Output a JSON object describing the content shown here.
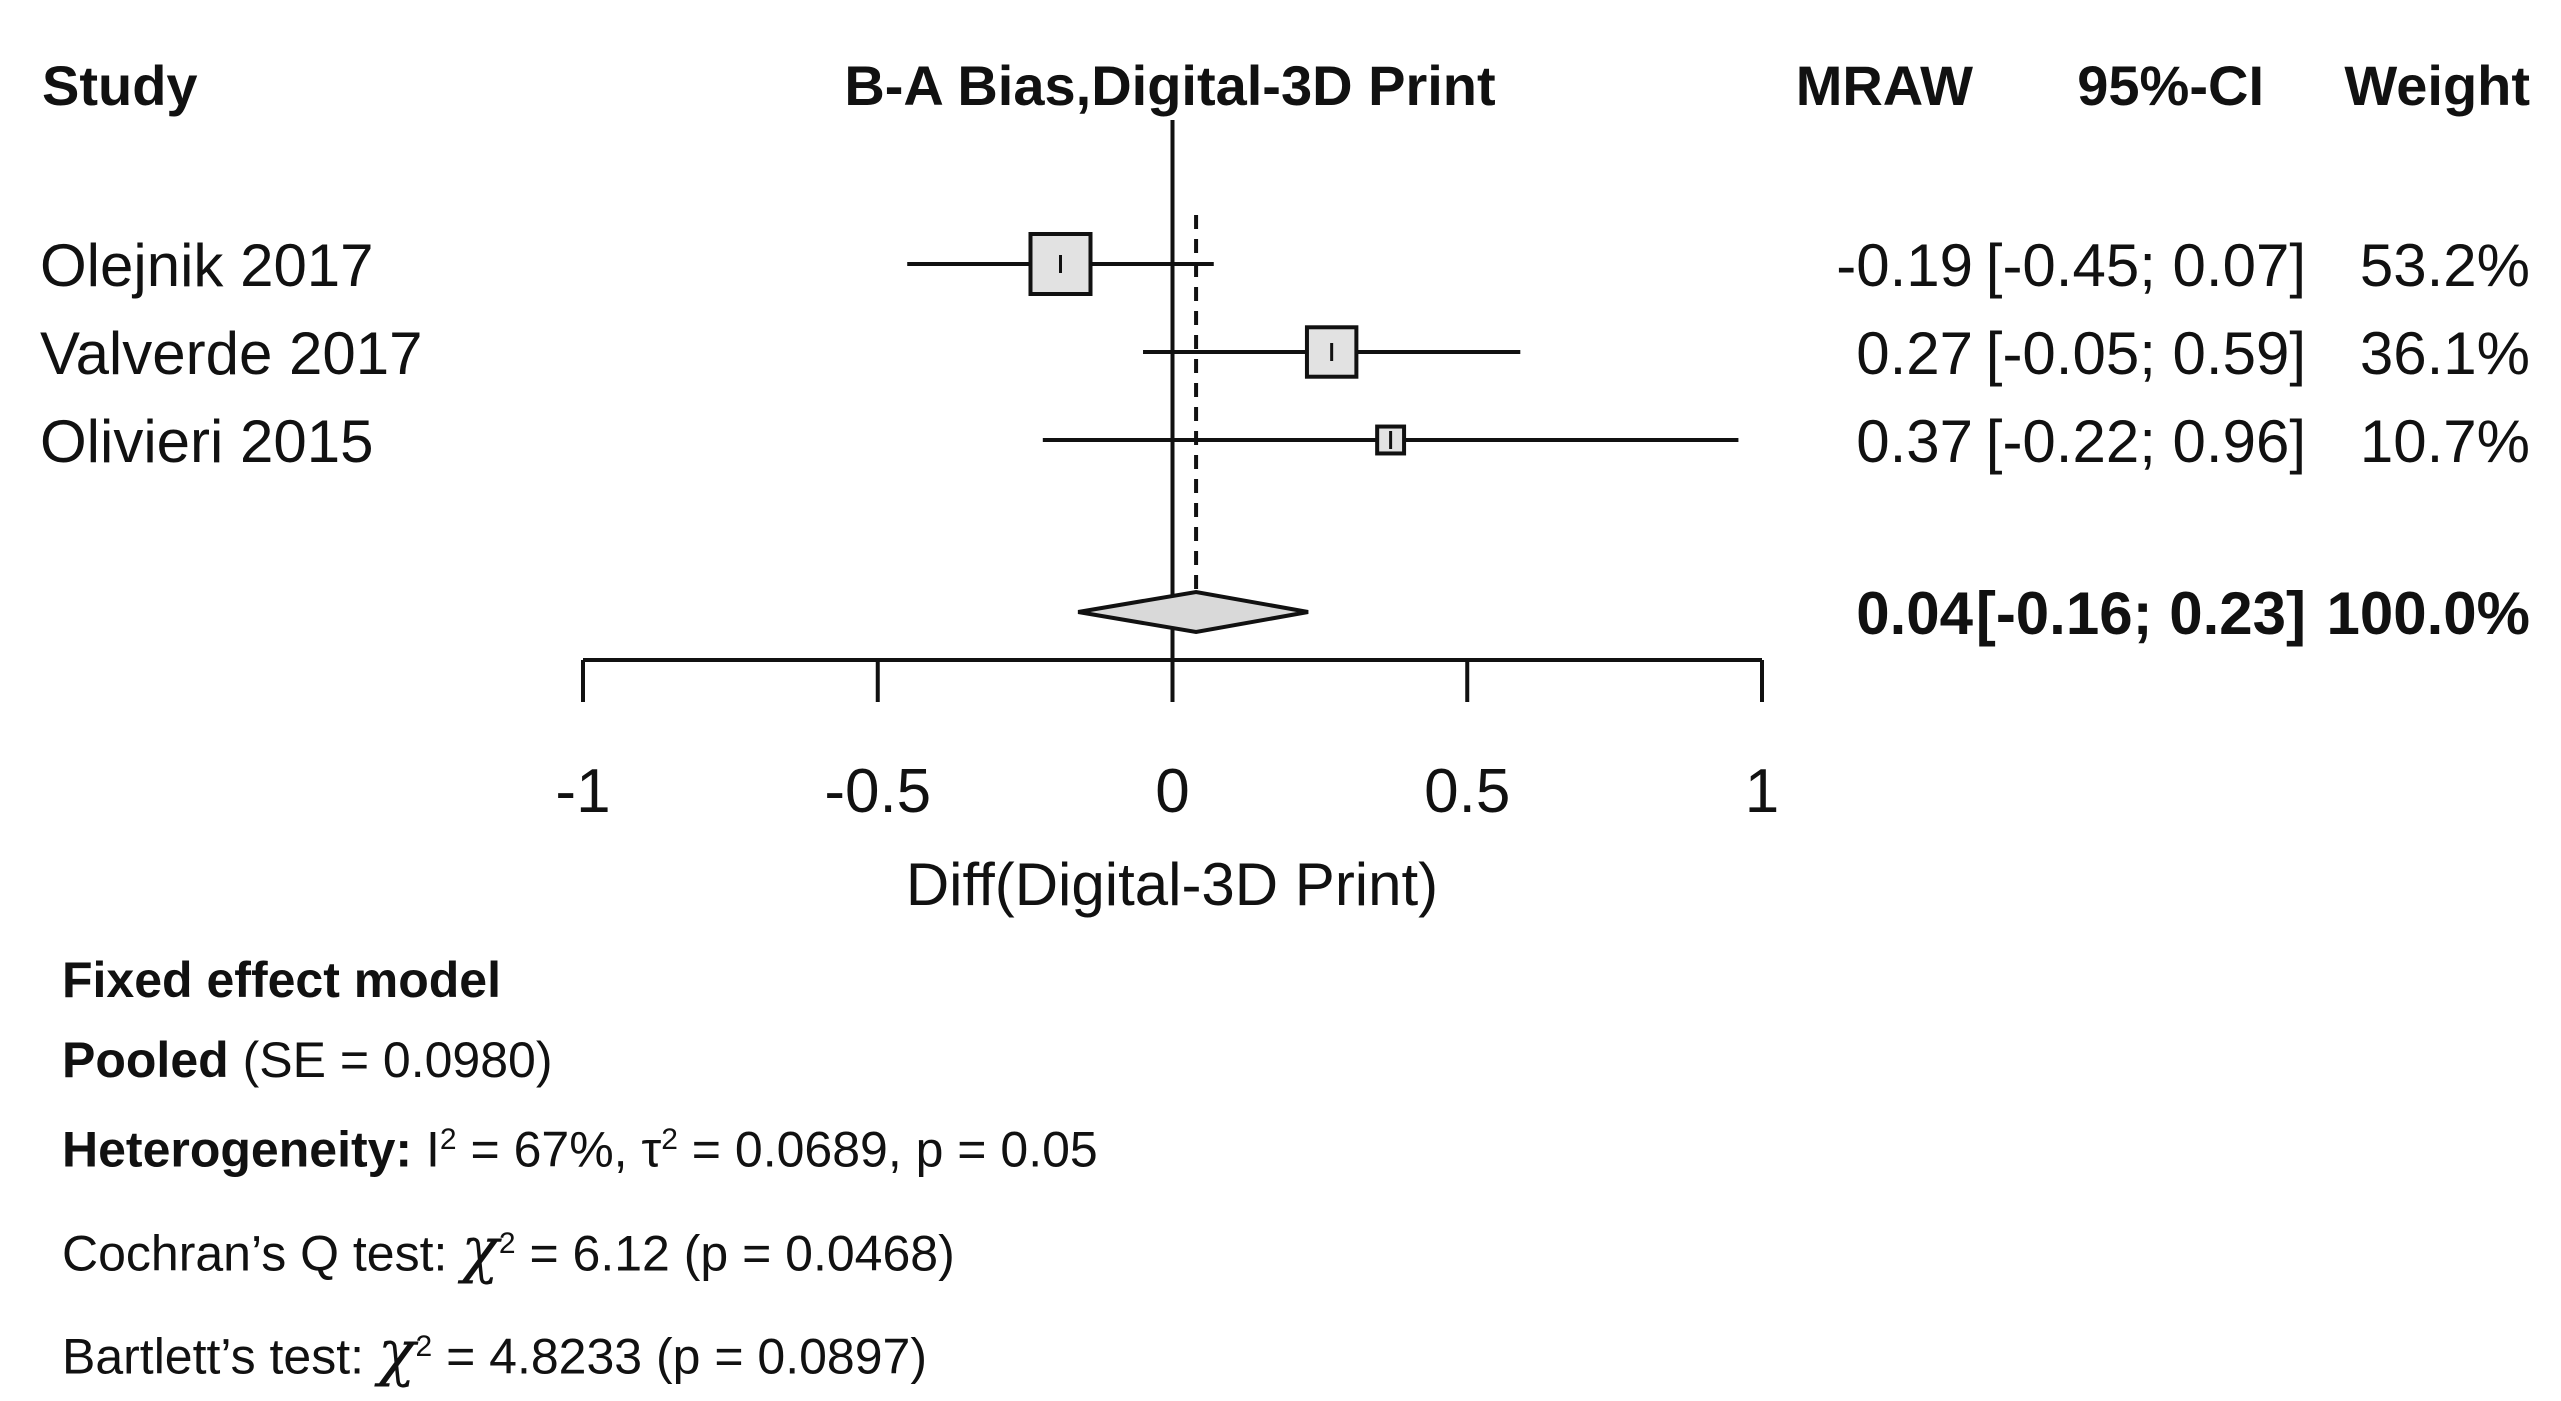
{
  "chart_data": {
    "type": "forest",
    "title": "B-A Bias,Digital-3D Print",
    "headers": {
      "study": "Study",
      "effect": "MRAW",
      "ci": "95%-CI",
      "weight": "Weight"
    },
    "xlabel": "Diff(Digital-3D Print)",
    "xlim": [
      -1,
      1
    ],
    "xticks": [
      -1,
      -0.5,
      0,
      0.5,
      1
    ],
    "xtick_labels": [
      "-1",
      "-0.5",
      "0",
      "0.5",
      "1"
    ],
    "reference_line": 0,
    "pooled_line": 0.04,
    "studies": [
      {
        "name": "Olejnik 2017",
        "mraw": -0.19,
        "lower": -0.45,
        "upper": 0.07,
        "weight": 53.2,
        "mraw_text": "-0.19",
        "ci_text": "[-0.45; 0.07]",
        "weight_text": "53.2%"
      },
      {
        "name": "Valverde 2017",
        "mraw": 0.27,
        "lower": -0.05,
        "upper": 0.59,
        "weight": 36.1,
        "mraw_text": "0.27",
        "ci_text": "[-0.05; 0.59]",
        "weight_text": "36.1%"
      },
      {
        "name": "Olivieri 2015",
        "mraw": 0.37,
        "lower": -0.22,
        "upper": 0.96,
        "weight": 10.7,
        "mraw_text": "0.37",
        "ci_text": "[-0.22; 0.96]",
        "weight_text": "10.7%"
      }
    ],
    "pooled": {
      "mraw": 0.04,
      "lower": -0.16,
      "upper": 0.23,
      "weight": 100.0,
      "mraw_text": "0.04",
      "ci_text": "[-0.16; 0.23]",
      "weight_text": "100.0%"
    }
  },
  "stats": {
    "model": "Fixed effect model",
    "pooled_label": "Pooled",
    "pooled_text": "(SE = 0.0980)",
    "heterogeneity_label": "Heterogeneity:",
    "i2_text": "I",
    "i2_value": "= 67%, ",
    "tau_text": "τ",
    "tau_value": "= 0.0689, p = 0.05",
    "cochran_label": "Cochran’s Q test:",
    "cochran_value": "= 6.12 (p = 0.0468)",
    "bartlett_label": "Bartlett’s test:",
    "bartlett_value": "= 4.8233 (p = 0.0897)",
    "chi_symbol": "χ",
    "squared": "2"
  }
}
